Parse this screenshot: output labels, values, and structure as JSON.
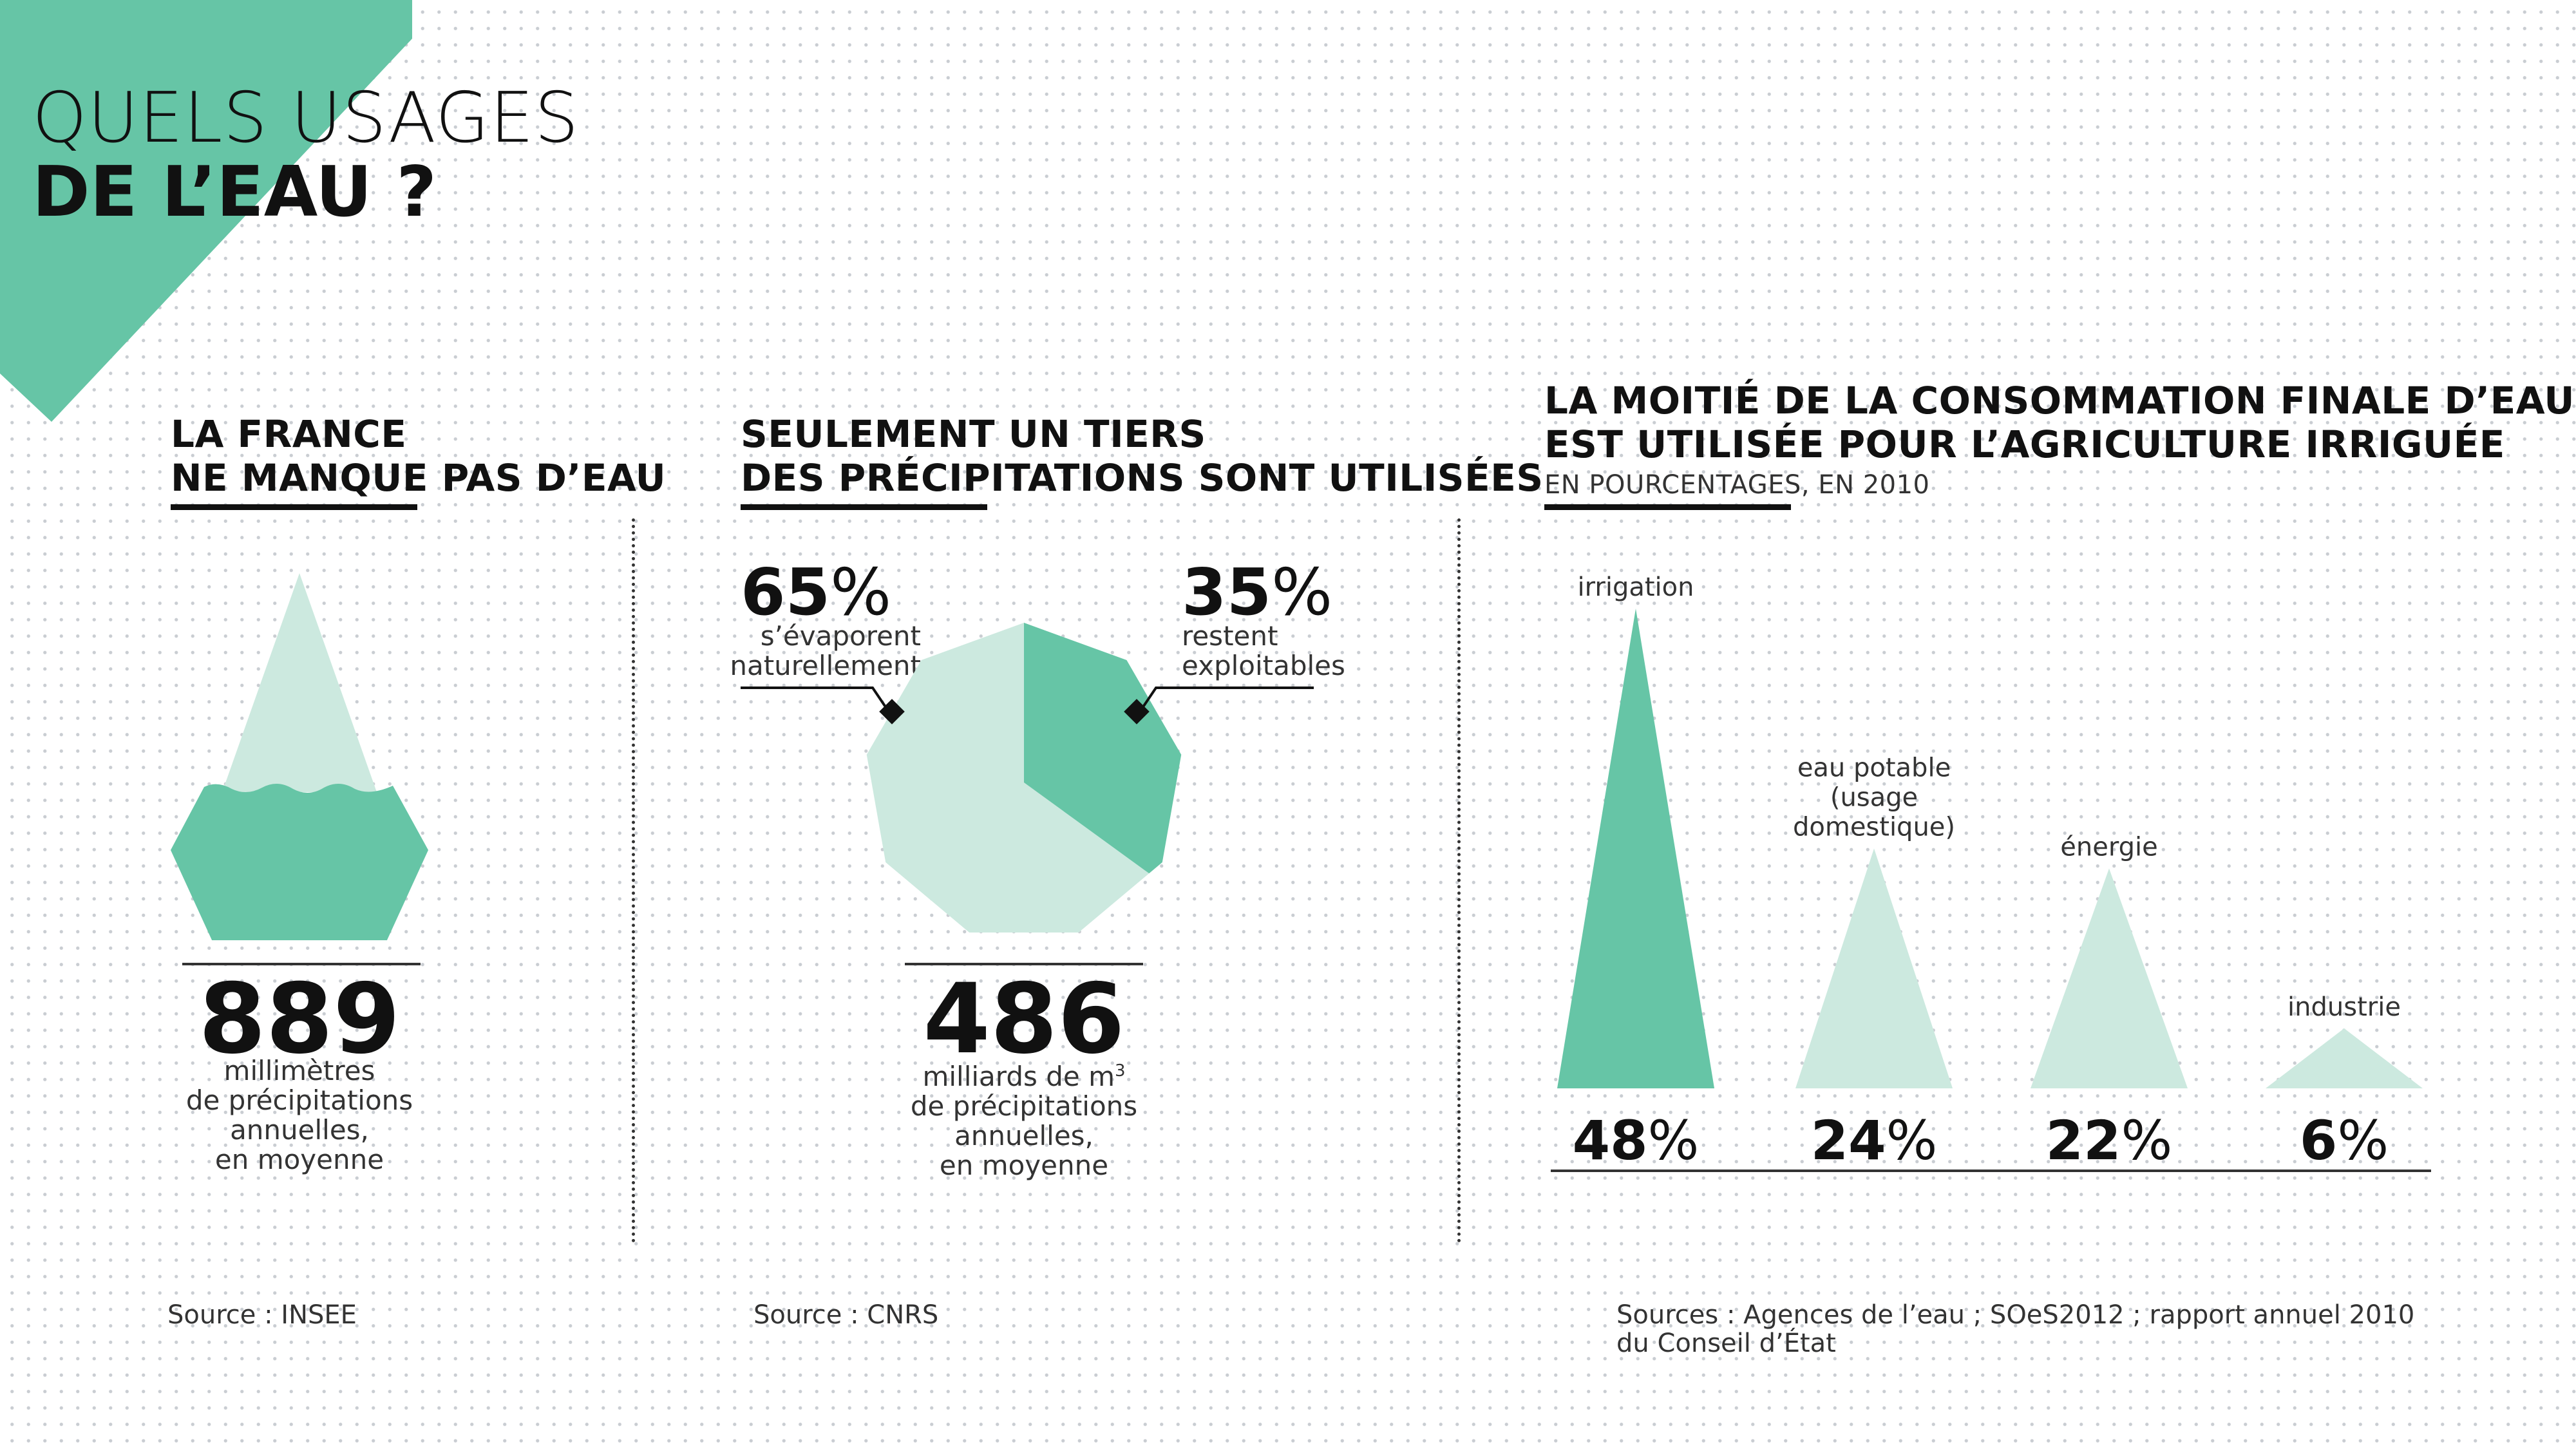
{
  "colors": {
    "dark": "#66c5a6",
    "light": "#cce9df",
    "ink": "#111111"
  },
  "header": {
    "line1": "QUELS USAGES",
    "line2": "DE L’EAU ?"
  },
  "section1": {
    "title_line1": "LA FRANCE",
    "title_line2": "NE MANQUE PAS D’EAU",
    "value": "889",
    "caption": [
      "millimètres",
      "de précipitations",
      "annuelles,",
      "en moyenne"
    ],
    "source": "Source : INSEE"
  },
  "section2": {
    "title_line1": "SEULEMENT UN TIERS",
    "title_line2": "DES PRÉCIPITATIONS SONT UTILISÉES",
    "left_pct": "65",
    "left_caption": [
      "s’évaporent",
      "naturellement"
    ],
    "right_pct": "35",
    "right_caption": [
      "restent",
      "exploitables"
    ],
    "pct_symbol": "%",
    "value": "486",
    "caption_first_text": "milliards de m",
    "caption_first_sup": "3",
    "caption": [
      "de précipitations",
      "annuelles,",
      "en moyenne"
    ],
    "source": "Source : CNRS"
  },
  "section3": {
    "title_line1": "LA MOITIÉ DE LA CONSOMMATION FINALE D’EAU",
    "title_line2": "EST UTILISÉE POUR L’AGRICULTURE IRRIGUÉE",
    "subtitle": "EN POURCENTAGES, EN 2010",
    "source_line1": "Sources : Agences de l’eau ; SOeS2012 ; rapport annuel 2010",
    "source_line2": "du Conseil d’État"
  },
  "chart_data": [
    {
      "type": "pie",
      "title": "SEULEMENT UN TIERS DES PRÉCIPITATIONS SONT UTILISÉES",
      "categories": [
        "s’évaporent naturellement",
        "restent exploitables"
      ],
      "values": [
        65,
        35
      ],
      "total": 486,
      "unit": "%"
    },
    {
      "type": "bar",
      "title": "LA MOITIÉ DE LA CONSOMMATION FINALE D’EAU EST UTILISÉE POUR L’AGRICULTURE IRRIGUÉE",
      "subtitle": "EN POURCENTAGES, EN 2010",
      "categories": [
        "irrigation",
        "eau potable (usage domestique)",
        "énergie",
        "industrie"
      ],
      "category_lines": [
        [
          "irrigation"
        ],
        [
          "eau potable",
          "(usage",
          "domestique)"
        ],
        [
          "énergie"
        ],
        [
          "industrie"
        ]
      ],
      "values": [
        48,
        24,
        22,
        6
      ],
      "unit": "%",
      "ylim": [
        0,
        48
      ]
    }
  ]
}
